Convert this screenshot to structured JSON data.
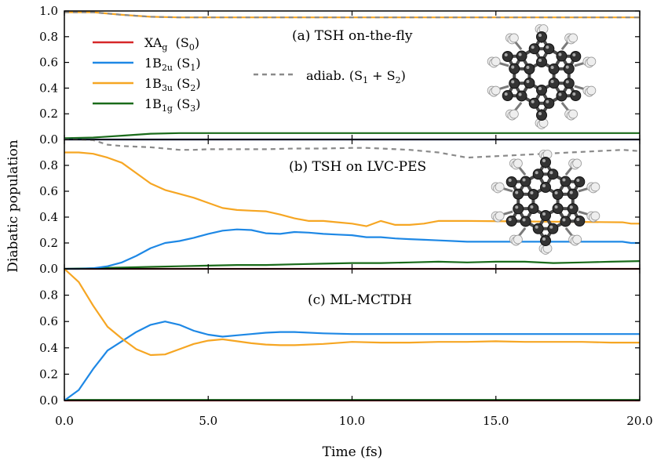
{
  "chart_data": {
    "type": "line",
    "xlabel": "Time (fs)",
    "ylabel": "Diabatic population",
    "xlim": [
      0,
      20
    ],
    "x_ticks": [
      "0.0",
      "5.0",
      "10.0",
      "15.0",
      "20.0"
    ],
    "grid": false,
    "legend_placement": "top-left",
    "legend": [
      {
        "key": "S0",
        "main": "XA",
        "sub": "g",
        "state": "S",
        "state_sub": "0",
        "color": "#d62728"
      },
      {
        "key": "S1",
        "main": "1B",
        "sub": "2u",
        "state": "S",
        "state_sub": "1",
        "color": "#1e88e5"
      },
      {
        "key": "S2",
        "main": "1B",
        "sub": "3u",
        "state": "S",
        "state_sub": "2",
        "color": "#f6a623"
      },
      {
        "key": "S3",
        "main": "1B",
        "sub": "1g",
        "state": "S",
        "state_sub": "3",
        "color": "#1a6b1a"
      }
    ],
    "adiab_legend": {
      "prefix": "adiab. (S",
      "a": "1",
      "mid": " + S",
      "b": "2",
      "suffix": ")",
      "color": "#8a8a8a"
    },
    "panels": [
      {
        "label": "(a) TSH on-the-fly",
        "ylim": [
          0,
          1.0
        ],
        "y_ticks": [
          "0.0",
          "0.2",
          "0.4",
          "0.6",
          "0.8",
          "1.0"
        ],
        "series": [
          {
            "key": "S0",
            "x": [
              0,
              20
            ],
            "y": [
              0.0,
              0.0
            ]
          },
          {
            "key": "S2",
            "x": [
              0,
              1,
              2,
              3,
              4,
              6,
              8,
              10,
              12,
              14,
              16,
              18,
              20
            ],
            "y": [
              0.99,
              0.99,
              0.97,
              0.955,
              0.95,
              0.95,
              0.95,
              0.95,
              0.95,
              0.95,
              0.95,
              0.95,
              0.95
            ]
          },
          {
            "key": "adiab",
            "x": [
              0,
              1,
              2,
              3,
              4,
              6,
              8,
              10,
              12,
              14,
              16,
              18,
              20
            ],
            "y": [
              0.99,
              0.99,
              0.97,
              0.955,
              0.95,
              0.95,
              0.95,
              0.95,
              0.95,
              0.95,
              0.95,
              0.95,
              0.95
            ]
          },
          {
            "key": "S3",
            "x": [
              0,
              1,
              2,
              3,
              4,
              5,
              6,
              8,
              10,
              12,
              14,
              16,
              18,
              20
            ],
            "y": [
              0.01,
              0.015,
              0.03,
              0.045,
              0.05,
              0.05,
              0.05,
              0.05,
              0.05,
              0.05,
              0.05,
              0.05,
              0.05,
              0.05
            ]
          },
          {
            "key": "S1",
            "x": [
              0,
              20
            ],
            "y": [
              0.0,
              0.0
            ]
          }
        ]
      },
      {
        "label": "(b) TSH on LVC-PES",
        "ylim": [
          0,
          1.0
        ],
        "y_ticks": [
          "0.0",
          "0.2",
          "0.4",
          "0.6",
          "0.8"
        ],
        "series": [
          {
            "key": "S0",
            "x": [
              0,
              20
            ],
            "y": [
              0.0,
              0.0
            ]
          },
          {
            "key": "adiab",
            "x": [
              0,
              0.5,
              1,
              1.5,
              2,
              2.5,
              3,
              3.5,
              4,
              4.5,
              5,
              6,
              7,
              8,
              9,
              10,
              10.5,
              11,
              12,
              13,
              14,
              19.4,
              20
            ],
            "y": [
              1.0,
              1.0,
              0.995,
              0.96,
              0.95,
              0.945,
              0.94,
              0.93,
              0.92,
              0.92,
              0.925,
              0.925,
              0.925,
              0.93,
              0.93,
              0.935,
              0.935,
              0.93,
              0.92,
              0.9,
              0.86,
              0.92,
              0.91
            ]
          },
          {
            "key": "S2",
            "x": [
              0,
              0.5,
              1,
              1.5,
              2,
              2.5,
              3,
              3.5,
              4,
              4.5,
              5,
              5.5,
              6,
              6.5,
              7,
              7.5,
              8,
              8.5,
              9,
              9.5,
              10,
              10.5,
              11,
              11.5,
              12,
              12.5,
              13,
              13.5,
              14,
              19.4,
              19.7,
              20
            ],
            "y": [
              0.9,
              0.9,
              0.89,
              0.86,
              0.82,
              0.74,
              0.66,
              0.61,
              0.58,
              0.55,
              0.51,
              0.47,
              0.455,
              0.45,
              0.445,
              0.42,
              0.39,
              0.37,
              0.37,
              0.36,
              0.35,
              0.33,
              0.37,
              0.34,
              0.34,
              0.35,
              0.37,
              0.37,
              0.37,
              0.36,
              0.35,
              0.35
            ]
          },
          {
            "key": "S1",
            "x": [
              0,
              0.5,
              1,
              1.5,
              2,
              2.5,
              3,
              3.5,
              4,
              4.5,
              5,
              5.5,
              6,
              6.5,
              7,
              7.5,
              8,
              8.5,
              9,
              9.5,
              10,
              10.5,
              11,
              11.5,
              12,
              12.5,
              13,
              13.5,
              14,
              19.4,
              19.7,
              20
            ],
            "y": [
              0.0,
              0.0,
              0.005,
              0.02,
              0.05,
              0.1,
              0.16,
              0.2,
              0.215,
              0.24,
              0.27,
              0.295,
              0.305,
              0.3,
              0.275,
              0.27,
              0.285,
              0.28,
              0.27,
              0.265,
              0.26,
              0.245,
              0.245,
              0.235,
              0.23,
              0.225,
              0.22,
              0.215,
              0.21,
              0.21,
              0.2,
              0.2
            ]
          },
          {
            "key": "S3",
            "x": [
              0,
              1,
              2,
              3,
              4,
              5,
              6,
              7,
              8,
              9,
              10,
              11,
              12,
              13,
              14,
              15,
              16,
              17,
              18,
              19,
              20
            ],
            "y": [
              0.0,
              0.005,
              0.01,
              0.015,
              0.02,
              0.025,
              0.03,
              0.03,
              0.035,
              0.04,
              0.045,
              0.045,
              0.05,
              0.055,
              0.05,
              0.055,
              0.055,
              0.045,
              0.05,
              0.055,
              0.06
            ]
          }
        ]
      },
      {
        "label": "(c) ML-MCTDH",
        "ylim": [
          0,
          1.0
        ],
        "y_ticks": [
          "0.0",
          "0.2",
          "0.4",
          "0.6",
          "0.8"
        ],
        "series": [
          {
            "key": "S0",
            "x": [
              0,
              20
            ],
            "y": [
              0.0,
              0.0
            ]
          },
          {
            "key": "S3",
            "x": [
              0,
              20
            ],
            "y": [
              0.005,
              0.005
            ]
          },
          {
            "key": "S2",
            "x": [
              0,
              0.5,
              1,
              1.5,
              2,
              2.5,
              3,
              3.5,
              4,
              4.5,
              5,
              5.5,
              6,
              6.5,
              7,
              7.5,
              8,
              9,
              10,
              11,
              12,
              13,
              14,
              15,
              16,
              17,
              18,
              19,
              20
            ],
            "y": [
              1.0,
              0.9,
              0.72,
              0.56,
              0.47,
              0.39,
              0.345,
              0.35,
              0.39,
              0.43,
              0.455,
              0.465,
              0.45,
              0.435,
              0.425,
              0.42,
              0.42,
              0.43,
              0.445,
              0.44,
              0.44,
              0.445,
              0.445,
              0.45,
              0.445,
              0.445,
              0.445,
              0.44,
              0.44
            ]
          },
          {
            "key": "S1",
            "x": [
              0,
              0.5,
              1,
              1.5,
              2,
              2.5,
              3,
              3.5,
              4,
              4.5,
              5,
              5.5,
              6,
              6.5,
              7,
              7.5,
              8,
              9,
              10,
              11,
              12,
              13,
              14,
              15,
              16,
              17,
              18,
              19,
              20
            ],
            "y": [
              0.0,
              0.08,
              0.24,
              0.38,
              0.45,
              0.52,
              0.575,
              0.6,
              0.575,
              0.53,
              0.5,
              0.485,
              0.495,
              0.505,
              0.515,
              0.52,
              0.52,
              0.51,
              0.505,
              0.505,
              0.505,
              0.505,
              0.505,
              0.505,
              0.505,
              0.505,
              0.505,
              0.505,
              0.505
            ]
          }
        ]
      }
    ]
  }
}
